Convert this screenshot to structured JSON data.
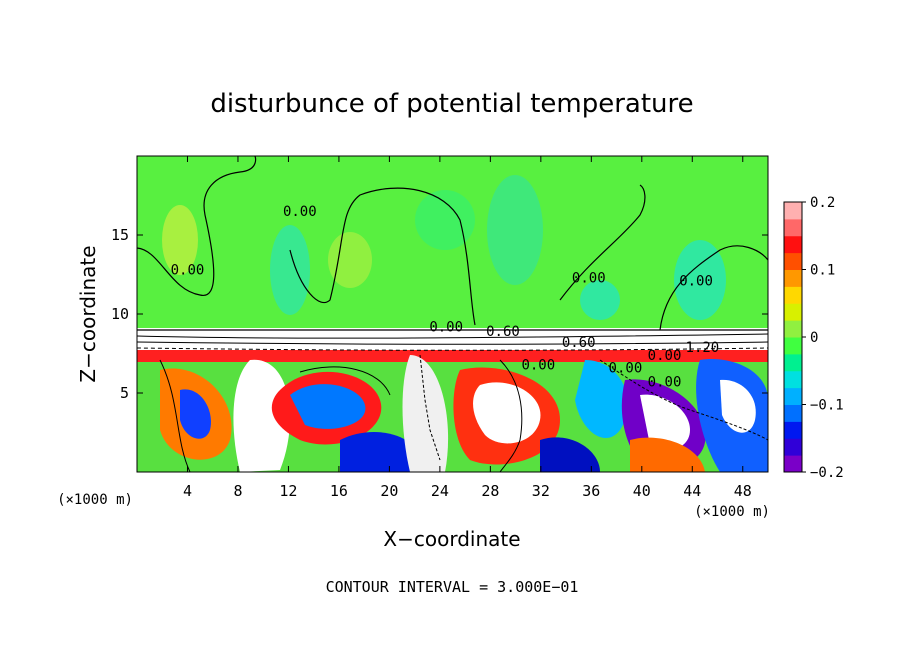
{
  "chart_data": {
    "type": "heatmap",
    "title": "disturbunce of potential temperature",
    "xlabel": "X−coordinate",
    "ylabel": "Z−coordinate",
    "x_unit": "(×1000 m)",
    "y_unit": "(×1000 m)",
    "footer": "CONTOUR INTERVAL = 3.000E−01",
    "xlim": [
      0,
      50
    ],
    "ylim": [
      0,
      20
    ],
    "x_ticks": [
      4,
      8,
      12,
      16,
      20,
      24,
      28,
      32,
      36,
      40,
      44,
      48
    ],
    "y_ticks": [
      5,
      10,
      15
    ],
    "colorbar": {
      "min": -0.2,
      "max": 0.2,
      "tick_values": [
        0.2,
        0.1,
        0,
        -0.1,
        -0.2
      ],
      "tick_labels": [
        "0.2",
        "0.1",
        "0",
        "−0.1",
        "−0.2"
      ],
      "colors": [
        "#7a00c8",
        "#3000d8",
        "#0018f0",
        "#0070ff",
        "#00b0ff",
        "#00e0e0",
        "#00f090",
        "#40ff40",
        "#90f040",
        "#d8f000",
        "#ffd800",
        "#ff9800",
        "#ff5000",
        "#ff1010",
        "#ff6868",
        "#ffb0b0"
      ]
    },
    "contour_labels": [
      {
        "text": "0.00",
        "x": 24.5,
        "y": 8.9
      },
      {
        "text": "0.00",
        "x": 38.7,
        "y": 6.3
      },
      {
        "text": "0.00",
        "x": 41.8,
        "y": 7.1
      },
      {
        "text": "0.00",
        "x": 41.8,
        "y": 5.4
      },
      {
        "text": "0.00",
        "x": 12.9,
        "y": 16.2
      },
      {
        "text": "0.00",
        "x": 35.8,
        "y": 12.0
      },
      {
        "text": "0.00",
        "x": 44.3,
        "y": 11.8
      },
      {
        "text": "0.60",
        "x": 29.0,
        "y": 8.6
      },
      {
        "text": "0.60",
        "x": 35.0,
        "y": 7.9
      },
      {
        "text": "1.20",
        "x": 44.8,
        "y": 7.6
      },
      {
        "text": "0.00",
        "x": 4.0,
        "y": 12.5
      },
      {
        "text": "0.00",
        "x": 31.8,
        "y": 6.5
      }
    ]
  }
}
